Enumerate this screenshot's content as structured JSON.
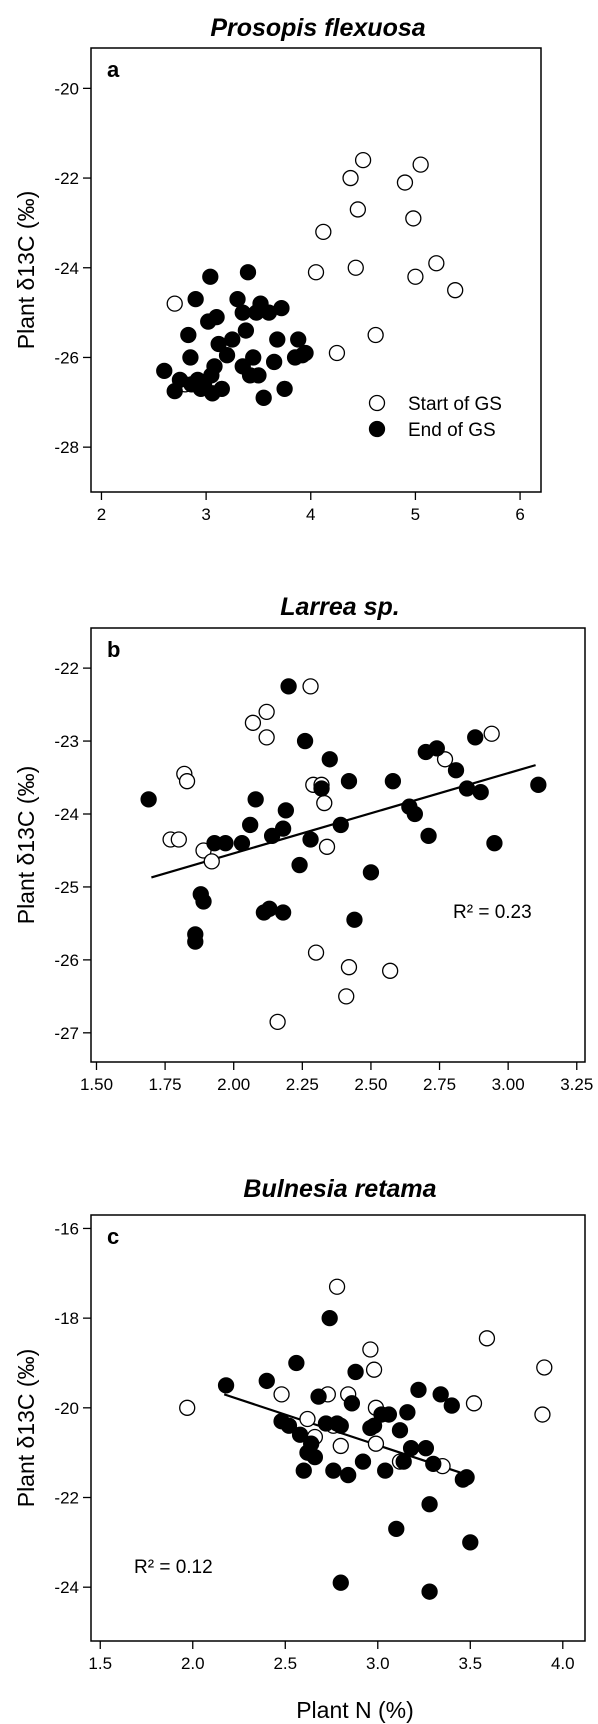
{
  "x_axis_label": "Plant N (%)",
  "chart_data": [
    {
      "type": "scatter",
      "panel_label": "a",
      "title": "Prosopis flexuosa",
      "xlabel": "",
      "ylabel": "Plant δ13C (‰)",
      "xlim": [
        1.9,
        6.2
      ],
      "ylim": [
        -29.0,
        -19.1
      ],
      "xticks": [
        2,
        3,
        4,
        5,
        6
      ],
      "yticks": [
        -28,
        -26,
        -24,
        -22,
        -20
      ],
      "grid": false,
      "legend_position": "bottom-right",
      "r2_label": "",
      "series": [
        {
          "name": "Start of GS",
          "marker": "open",
          "x": [
            2.7,
            2.8,
            4.05,
            4.12,
            4.25,
            4.38,
            4.43,
            4.45,
            4.5,
            4.62,
            4.9,
            4.98,
            5.0,
            5.05,
            5.2,
            5.38
          ],
          "y": [
            -24.8,
            -26.6,
            -24.1,
            -23.2,
            -25.9,
            -22.0,
            -24.0,
            -22.7,
            -21.6,
            -25.5,
            -22.1,
            -22.9,
            -24.2,
            -21.7,
            -23.9,
            -24.5
          ]
        },
        {
          "name": "End of GS",
          "marker": "filled",
          "x": [
            2.6,
            2.7,
            2.75,
            2.83,
            2.85,
            2.86,
            2.9,
            2.92,
            2.95,
            2.98,
            3.02,
            3.04,
            3.05,
            3.06,
            3.08,
            3.1,
            3.12,
            3.15,
            3.2,
            3.25,
            3.3,
            3.35,
            3.38,
            3.4,
            3.42,
            3.45,
            3.48,
            3.5,
            3.52,
            3.55,
            3.6,
            3.65,
            3.68,
            3.72,
            3.75,
            3.85,
            3.88,
            3.92,
            3.95,
            3.35
          ],
          "y": [
            -26.3,
            -26.75,
            -26.5,
            -25.5,
            -26.0,
            -26.6,
            -24.7,
            -26.5,
            -26.7,
            -26.6,
            -25.2,
            -24.2,
            -26.4,
            -26.8,
            -26.2,
            -25.1,
            -25.7,
            -26.7,
            -25.95,
            -25.6,
            -24.7,
            -25.0,
            -25.4,
            -24.1,
            -26.4,
            -26.0,
            -25.0,
            -26.4,
            -24.8,
            -26.9,
            -25.0,
            -26.1,
            -25.6,
            -24.9,
            -26.7,
            -26.0,
            -25.6,
            -25.95,
            -25.9,
            -26.2
          ]
        }
      ]
    },
    {
      "type": "scatter",
      "panel_label": "b",
      "title": "Larrea sp.",
      "xlabel": "",
      "ylabel": "Plant δ13C (‰)",
      "xlim": [
        1.48,
        3.28
      ],
      "ylim": [
        -27.4,
        -21.45
      ],
      "xticks": [
        1.5,
        1.75,
        2.0,
        2.25,
        2.5,
        2.75,
        3.0,
        3.25
      ],
      "xtick_labels": [
        "1.50",
        "1.75",
        "2.00",
        "2.25",
        "2.50",
        "2.75",
        "3.00",
        "3.25"
      ],
      "yticks": [
        -27,
        -26,
        -25,
        -24,
        -23,
        -22
      ],
      "grid": false,
      "r2_label": "R² = 0.23",
      "trendline": {
        "x": [
          1.7,
          3.1
        ],
        "y": [
          -24.87,
          -23.33
        ]
      },
      "series": [
        {
          "name": "Start of GS",
          "marker": "open",
          "x": [
            1.77,
            1.8,
            1.82,
            1.83,
            1.89,
            1.92,
            2.07,
            2.12,
            2.12,
            2.16,
            2.28,
            2.29,
            2.3,
            2.32,
            2.33,
            2.34,
            2.41,
            2.42,
            2.57,
            2.77,
            2.94
          ],
          "y": [
            -24.35,
            -24.35,
            -23.45,
            -23.55,
            -24.5,
            -24.65,
            -22.75,
            -22.6,
            -22.95,
            -26.85,
            -22.25,
            -23.6,
            -25.9,
            -23.6,
            -23.85,
            -24.45,
            -26.5,
            -26.1,
            -26.15,
            -23.25,
            -22.9
          ]
        },
        {
          "name": "End of GS",
          "marker": "filled",
          "x": [
            1.69,
            1.86,
            1.86,
            1.88,
            1.89,
            1.93,
            1.97,
            2.03,
            2.06,
            2.08,
            2.11,
            2.13,
            2.14,
            2.18,
            2.18,
            2.19,
            2.2,
            2.24,
            2.26,
            2.28,
            2.32,
            2.35,
            2.39,
            2.42,
            2.44,
            2.5,
            2.58,
            2.64,
            2.66,
            2.7,
            2.71,
            2.74,
            2.81,
            2.85,
            2.88,
            2.9,
            2.95,
            3.11
          ],
          "y": [
            -23.8,
            -25.65,
            -25.75,
            -25.1,
            -25.2,
            -24.4,
            -24.4,
            -24.4,
            -24.15,
            -23.8,
            -25.35,
            -25.3,
            -24.3,
            -24.2,
            -25.35,
            -23.95,
            -22.25,
            -24.7,
            -23.0,
            -24.35,
            -23.65,
            -23.25,
            -24.15,
            -23.55,
            -25.45,
            -24.8,
            -23.55,
            -23.9,
            -24.0,
            -23.15,
            -24.3,
            -23.1,
            -23.4,
            -23.65,
            -22.95,
            -23.7,
            -24.4,
            -23.6
          ]
        }
      ]
    },
    {
      "type": "scatter",
      "panel_label": "c",
      "title": "Bulnesia retama",
      "xlabel": "Plant N (%)",
      "ylabel": "Plant δ13C (‰)",
      "xlim": [
        1.45,
        4.12
      ],
      "ylim": [
        -25.2,
        -15.7
      ],
      "xticks": [
        1.5,
        2.0,
        2.5,
        3.0,
        3.5,
        4.0
      ],
      "xtick_labels": [
        "1.5",
        "2.0",
        "2.5",
        "3.0",
        "3.5",
        "4.0"
      ],
      "yticks": [
        -24,
        -22,
        -20,
        -18,
        -16
      ],
      "grid": false,
      "r2_label": "R² = 0.12",
      "trendline": {
        "x": [
          2.17,
          3.45
        ],
        "y": [
          -19.7,
          -21.45
        ]
      },
      "series": [
        {
          "name": "Start of GS",
          "marker": "open",
          "x": [
            1.97,
            2.48,
            2.62,
            2.66,
            2.73,
            2.76,
            2.78,
            2.8,
            2.84,
            2.96,
            2.98,
            2.99,
            2.99,
            3.12,
            3.35,
            3.52,
            3.59,
            3.89,
            3.9
          ],
          "y": [
            -20.0,
            -19.7,
            -20.25,
            -20.65,
            -19.7,
            -20.4,
            -17.3,
            -20.85,
            -19.7,
            -18.7,
            -19.15,
            -20.0,
            -20.8,
            -21.2,
            -21.3,
            -19.9,
            -18.45,
            -20.15,
            -19.1
          ]
        },
        {
          "name": "End of GS",
          "marker": "filled",
          "x": [
            2.18,
            2.4,
            2.48,
            2.52,
            2.56,
            2.58,
            2.6,
            2.62,
            2.64,
            2.66,
            2.68,
            2.72,
            2.74,
            2.76,
            2.78,
            2.8,
            2.8,
            2.84,
            2.86,
            2.88,
            2.92,
            2.96,
            2.98,
            3.02,
            3.04,
            3.06,
            3.1,
            3.12,
            3.14,
            3.16,
            3.18,
            3.22,
            3.26,
            3.28,
            3.3,
            3.34,
            3.4,
            3.46,
            3.48,
            3.5,
            3.28
          ],
          "y": [
            -19.5,
            -19.4,
            -20.3,
            -20.4,
            -19.0,
            -20.6,
            -21.4,
            -21.0,
            -20.8,
            -21.1,
            -19.75,
            -20.35,
            -18.0,
            -21.4,
            -20.35,
            -23.9,
            -20.4,
            -21.5,
            -19.9,
            -19.2,
            -21.2,
            -20.45,
            -20.4,
            -20.15,
            -21.4,
            -20.15,
            -22.7,
            -20.5,
            -21.2,
            -20.1,
            -20.9,
            -19.6,
            -20.9,
            -22.15,
            -21.25,
            -19.7,
            -19.95,
            -21.6,
            -21.55,
            -23.0,
            -24.1
          ]
        }
      ]
    }
  ]
}
